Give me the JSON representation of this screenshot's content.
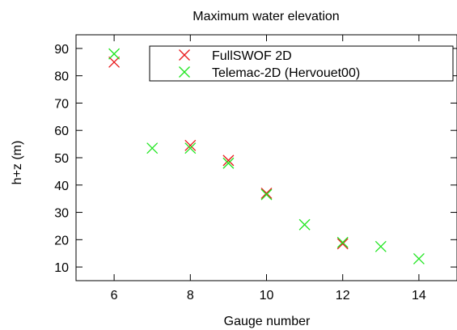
{
  "chart_data": {
    "type": "scatter",
    "title": "Maximum water elevation",
    "xlabel": "Gauge number",
    "ylabel": "h+z (m)",
    "xlim": [
      5,
      15
    ],
    "ylim": [
      5,
      95
    ],
    "xticks": [
      6,
      8,
      10,
      12,
      14
    ],
    "yticks": [
      10,
      20,
      30,
      40,
      50,
      60,
      70,
      80,
      90
    ],
    "grid": false,
    "legend_position": "top-right",
    "marker": "x",
    "series": [
      {
        "name": "FullSWOF 2D",
        "color": "#e8191b",
        "x": [
          6,
          8,
          9,
          10,
          12
        ],
        "y": [
          85,
          54.5,
          49,
          37,
          18.5
        ]
      },
      {
        "name": "Telemac-2D (Hervouet00)",
        "color": "#1fe51f",
        "x": [
          6,
          7,
          8,
          9,
          10,
          11,
          12,
          13,
          14
        ],
        "y": [
          88,
          53.5,
          53.5,
          48,
          36.5,
          25.5,
          19,
          17.5,
          13
        ]
      }
    ]
  }
}
